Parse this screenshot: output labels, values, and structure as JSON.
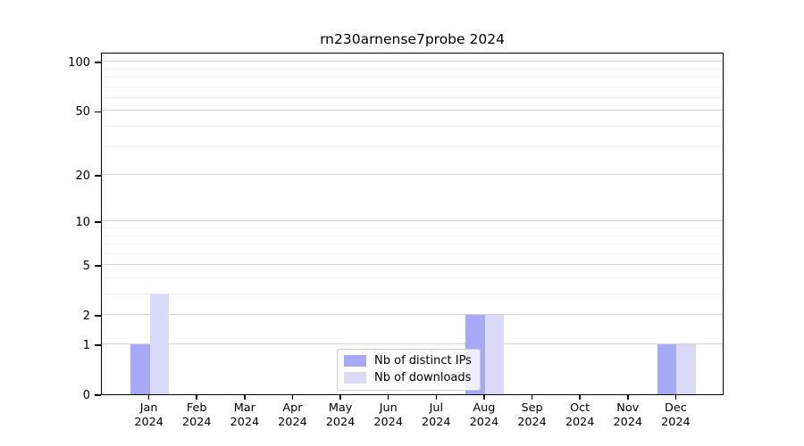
{
  "chart_data": {
    "type": "bar",
    "title": "rn230arnense7probe 2024",
    "categories": [
      {
        "month": "Jan",
        "year": "2024"
      },
      {
        "month": "Feb",
        "year": "2024"
      },
      {
        "month": "Mar",
        "year": "2024"
      },
      {
        "month": "Apr",
        "year": "2024"
      },
      {
        "month": "May",
        "year": "2024"
      },
      {
        "month": "Jun",
        "year": "2024"
      },
      {
        "month": "Jul",
        "year": "2024"
      },
      {
        "month": "Aug",
        "year": "2024"
      },
      {
        "month": "Sep",
        "year": "2024"
      },
      {
        "month": "Oct",
        "year": "2024"
      },
      {
        "month": "Nov",
        "year": "2024"
      },
      {
        "month": "Dec",
        "year": "2024"
      }
    ],
    "series": [
      {
        "name": "Nb of distinct IPs",
        "color": "#a8a8f6",
        "values": [
          1,
          0,
          0,
          0,
          0,
          0,
          0,
          2,
          0,
          0,
          0,
          1
        ]
      },
      {
        "name": "Nb of downloads",
        "color": "#dadaf8",
        "values": [
          3,
          0,
          0,
          0,
          0,
          0,
          0,
          2,
          0,
          0,
          0,
          1
        ]
      }
    ],
    "y_axis": {
      "scale": "log1p",
      "max": 115,
      "major_ticks": [
        0,
        1,
        2,
        5,
        10,
        20,
        50,
        100
      ],
      "minor_gridlines": [
        3,
        4,
        6,
        7,
        8,
        9,
        30,
        40,
        60,
        70,
        80,
        90
      ]
    },
    "legend": {
      "position": "lower-center"
    },
    "grid": true,
    "colors": {
      "grid_major": "#d4d4d4",
      "grid_minor": "#efefef",
      "axis": "#000000",
      "background": "#ffffff"
    }
  }
}
